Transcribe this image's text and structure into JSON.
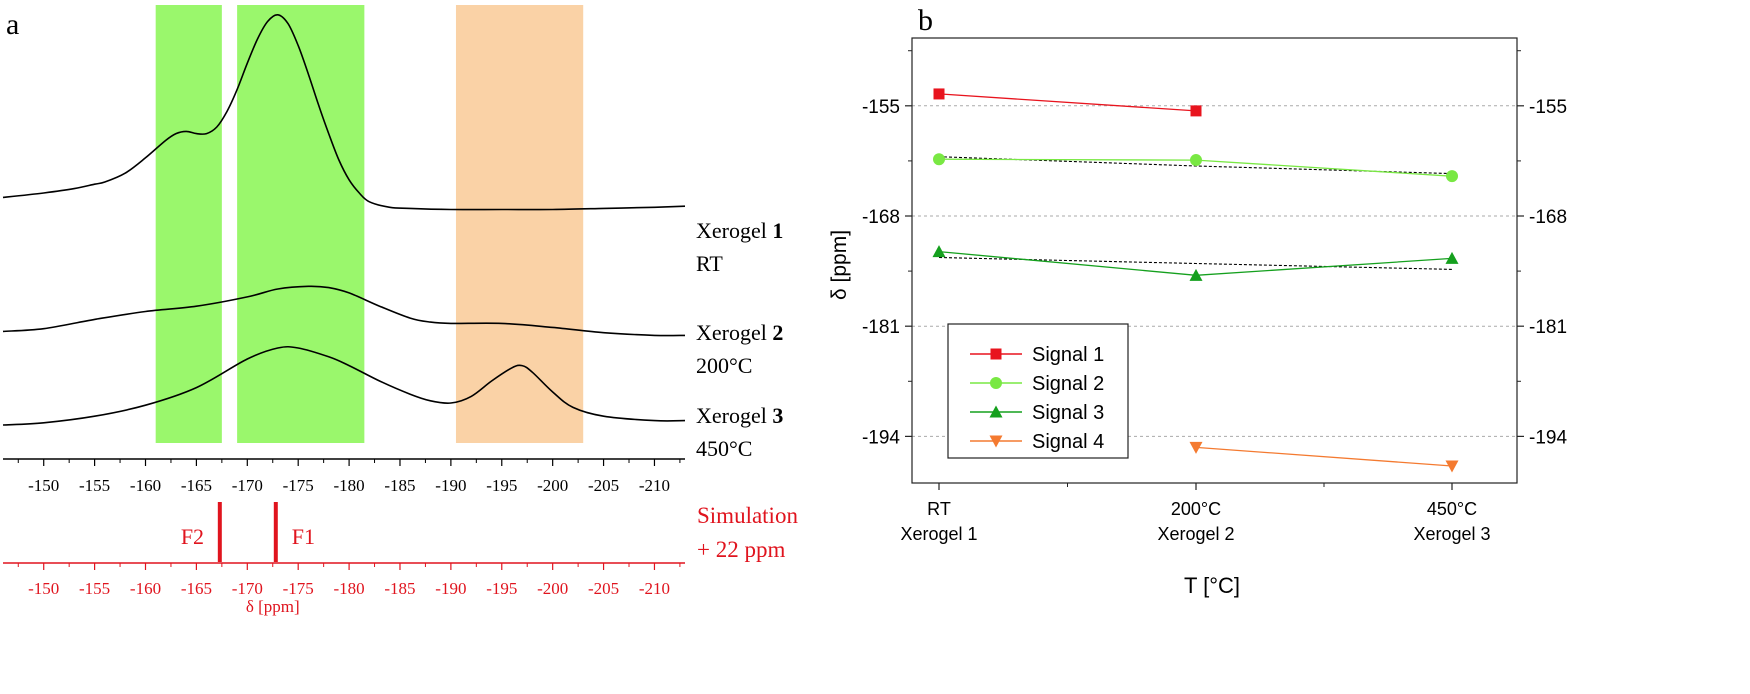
{
  "chart_data": [
    {
      "panel": "a",
      "type": "line",
      "xlim": [
        -146,
        -213
      ],
      "x_ticks": [
        -150,
        -155,
        -160,
        -165,
        -170,
        -175,
        -180,
        -185,
        -190,
        -195,
        -200,
        -205,
        -210
      ],
      "highlight_bands": [
        {
          "from": -161,
          "to": -167.5,
          "color": "#7df542"
        },
        {
          "from": -169,
          "to": -181.5,
          "color": "#7df542"
        },
        {
          "from": -190.5,
          "to": -203,
          "color": "#f8c084"
        }
      ],
      "series": [
        {
          "sample": "Xerogel",
          "number": "1",
          "condition": "RT",
          "x": [
            -146,
            -150,
            -153,
            -155,
            -156,
            -158,
            -160,
            -162,
            -163,
            -164,
            -165,
            -166,
            -167,
            -168,
            -169,
            -170,
            -171,
            -172,
            -173,
            -174,
            -175,
            -176,
            -177,
            -178,
            -179,
            -180,
            -181,
            -182,
            -184,
            -186,
            -190,
            -195,
            -200,
            -205,
            -210,
            -213
          ],
          "y": [
            0.23,
            0.25,
            0.27,
            0.29,
            0.3,
            0.34,
            0.41,
            0.49,
            0.52,
            0.53,
            0.52,
            0.52,
            0.55,
            0.62,
            0.72,
            0.84,
            0.95,
            1.03,
            1.06,
            1.02,
            0.92,
            0.79,
            0.65,
            0.52,
            0.4,
            0.31,
            0.25,
            0.21,
            0.185,
            0.18,
            0.175,
            0.175,
            0.175,
            0.18,
            0.185,
            0.19
          ]
        },
        {
          "sample": "Xerogel",
          "number": "2",
          "condition": "200°C",
          "x": [
            -146,
            -150,
            -155,
            -160,
            -165,
            -170,
            -173,
            -176,
            -178,
            -180,
            -183,
            -186,
            -188,
            -190,
            -195,
            -200,
            -205,
            -210,
            -213
          ],
          "y": [
            0.025,
            0.035,
            0.07,
            0.1,
            0.12,
            0.155,
            0.185,
            0.195,
            0.19,
            0.17,
            0.12,
            0.075,
            0.06,
            0.055,
            0.055,
            0.04,
            0.02,
            0.01,
            0.01
          ]
        },
        {
          "sample": "Xerogel",
          "number": "3",
          "condition": "450°C",
          "x": [
            -146,
            -150,
            -155,
            -160,
            -165,
            -170,
            -173,
            -175,
            -178,
            -180,
            -183,
            -186,
            -188,
            -190,
            -192,
            -194,
            -196,
            -197,
            -198,
            -200,
            -202,
            -205,
            -210,
            -213
          ],
          "y": [
            0.0,
            0.005,
            0.02,
            0.045,
            0.085,
            0.15,
            0.175,
            0.175,
            0.155,
            0.135,
            0.1,
            0.07,
            0.055,
            0.05,
            0.065,
            0.1,
            0.13,
            0.135,
            0.12,
            0.075,
            0.04,
            0.02,
            0.01,
            0.01
          ]
        }
      ],
      "simulation": {
        "label": [
          "Simulation",
          "+ 22 ppm"
        ],
        "sticks": [
          {
            "name": "F2",
            "x": -167.3
          },
          {
            "name": "F1",
            "x": -172.8
          }
        ],
        "xlabel": "δ [ppm]",
        "color": "#e0141e"
      }
    },
    {
      "panel": "b",
      "type": "line",
      "categories": [
        {
          "t": "RT",
          "sample": "Xerogel 1"
        },
        {
          "t": "200°C",
          "sample": "Xerogel 2"
        },
        {
          "t": "450°C",
          "sample": "Xerogel 3"
        }
      ],
      "xlabel": "T [°C]",
      "ylabel": "δ [ppm]",
      "ylim": [
        -199.5,
        -147
      ],
      "y_ticks": [
        -155,
        -168,
        -181,
        -194
      ],
      "grid": "horizontal dashed",
      "legend_position": "bottom-left",
      "series": [
        {
          "name": "Signal 1",
          "marker": "square",
          "color": "#e8141e",
          "values": [
            -153.6,
            -155.6,
            null
          ]
        },
        {
          "name": "Signal 2",
          "marker": "circle",
          "color": "#79e843",
          "values": [
            -161.3,
            -161.4,
            -163.3
          ]
        },
        {
          "name": "Signal 3",
          "marker": "triangle-up",
          "color": "#15a01e",
          "values": [
            -172.2,
            -175.0,
            -173.0
          ]
        },
        {
          "name": "Signal 4",
          "marker": "triangle-down",
          "color": "#f47a30",
          "values": [
            null,
            -195.3,
            -197.5
          ]
        }
      ],
      "trend_lines": [
        {
          "color": "#000000",
          "values": [
            -161.0,
            -162.1,
            -163.0
          ]
        },
        {
          "color": "#000000",
          "values": [
            -172.9,
            -173.6,
            -174.3
          ]
        }
      ]
    }
  ],
  "panel_labels": {
    "a": "a",
    "b": "b"
  }
}
